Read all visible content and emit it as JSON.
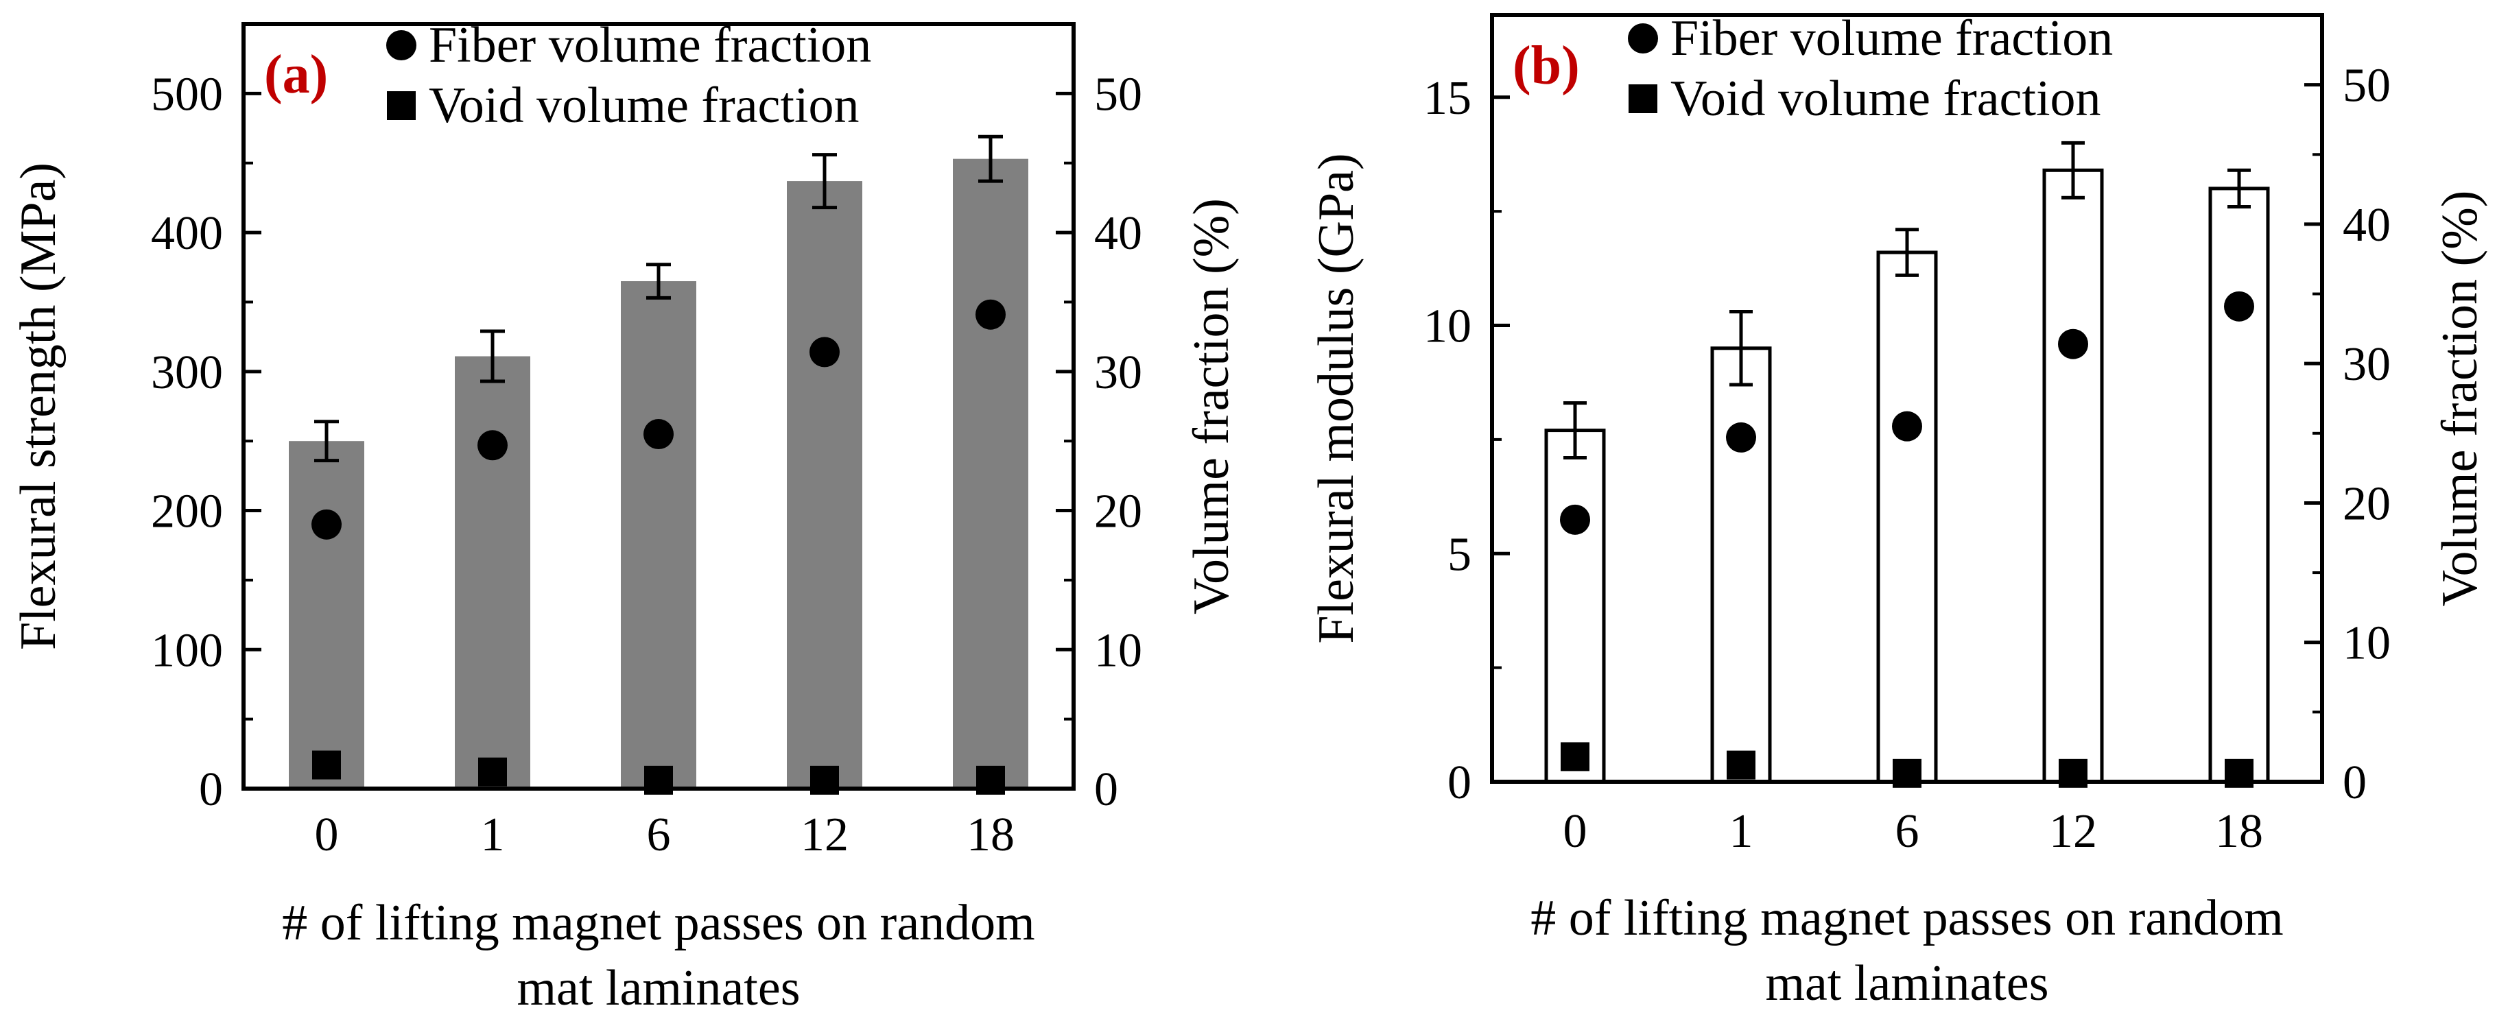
{
  "chart_data": [
    {
      "type": "bar",
      "panel_label": "(a)",
      "categories": [
        "0",
        "1",
        "6",
        "12",
        "18"
      ],
      "series": [
        {
          "name": "Flexural strength",
          "values": [
            250,
            311,
            365,
            437,
            453
          ],
          "errors": [
            14,
            18,
            12,
            19,
            16
          ],
          "axis": "left",
          "color": "#808080"
        },
        {
          "name": "Fiber volume fraction",
          "values": [
            19,
            24.7,
            25.5,
            31.4,
            34.1
          ],
          "axis": "right",
          "marker": "circle"
        },
        {
          "name": "Void volume fraction",
          "values": [
            1.7,
            1.2,
            0.6,
            0.6,
            0.6
          ],
          "axis": "right",
          "marker": "square"
        }
      ],
      "legend": [
        "Fiber volume fraction",
        "Void volume fraction"
      ],
      "ylabel": "Flexural strength (MPa)",
      "ylabel_right": "Volume fraction (%)",
      "xlabel": [
        "# of lifting magnet passes on random",
        "mat laminates"
      ],
      "ylim": [
        0,
        550
      ],
      "yticks": [
        "0",
        "100",
        "200",
        "300",
        "400",
        "500"
      ],
      "ylim_right": [
        0,
        55
      ],
      "yticks_right": [
        "0",
        "10",
        "20",
        "30",
        "40",
        "50"
      ]
    },
    {
      "type": "bar",
      "panel_label": "(b)",
      "categories": [
        "0",
        "1",
        "6",
        "12",
        "18"
      ],
      "series": [
        {
          "name": "Flexural modulus",
          "values": [
            7.7,
            9.5,
            11.6,
            13.4,
            13.0
          ],
          "errors": [
            0.6,
            0.8,
            0.5,
            0.6,
            0.4
          ],
          "axis": "left",
          "color": "#ffffff"
        },
        {
          "name": "Fiber volume fraction",
          "values": [
            18.8,
            24.7,
            25.5,
            31.4,
            34.1
          ],
          "axis": "right",
          "marker": "circle"
        },
        {
          "name": "Void volume fraction",
          "values": [
            1.8,
            1.2,
            0.6,
            0.6,
            0.6
          ],
          "axis": "right",
          "marker": "square"
        }
      ],
      "legend": [
        "Fiber volume fraction",
        "Void volume fraction"
      ],
      "ylabel": "Flexural modulus (GPa)",
      "ylabel_right": "Volume fraction (%)",
      "xlabel": [
        "# of lifting magnet passes on random",
        "mat laminates"
      ],
      "ylim": [
        0,
        16.8
      ],
      "yticks": [
        "0",
        "5",
        "10",
        "15"
      ],
      "ylim_right": [
        0,
        55
      ],
      "yticks_right": [
        "0",
        "10",
        "20",
        "30",
        "40",
        "50"
      ]
    }
  ]
}
